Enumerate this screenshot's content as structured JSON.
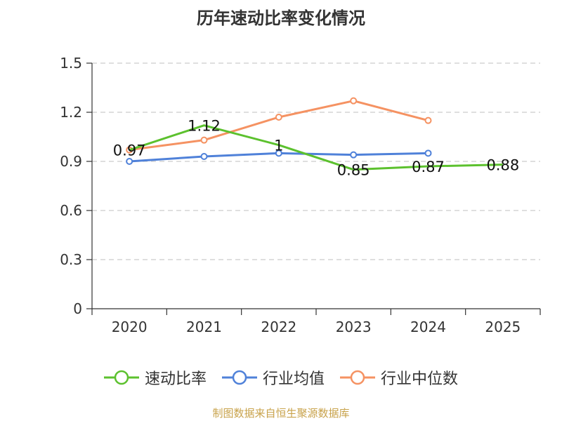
{
  "chart_data": {
    "type": "line",
    "title": "历年速动比率变化情况",
    "categories": [
      "2020",
      "2021",
      "2022",
      "2023",
      "2024",
      "2025"
    ],
    "ylim": [
      0,
      1.5
    ],
    "yticks": [
      "0",
      "0.3",
      "0.6",
      "0.9",
      "1.2",
      "1.5"
    ],
    "xlabel": "",
    "ylabel": "",
    "grid": true,
    "legend_position": "bottom",
    "series": [
      {
        "name": "速动比率",
        "color": "#5cc12e",
        "values": [
          0.97,
          1.12,
          1.0,
          0.85,
          0.87,
          0.88
        ],
        "labels": [
          "0.97",
          "1.12",
          "1",
          "0.85",
          "0.87",
          "0.88"
        ]
      },
      {
        "name": "行业均值",
        "color": "#4f81d9",
        "values": [
          0.9,
          0.93,
          0.95,
          0.94,
          0.95,
          null
        ]
      },
      {
        "name": "行业中位数",
        "color": "#f59262",
        "values": [
          0.97,
          1.03,
          1.17,
          1.27,
          1.15,
          null
        ]
      }
    ]
  },
  "source_note": "制图数据来自恒生聚源数据库"
}
